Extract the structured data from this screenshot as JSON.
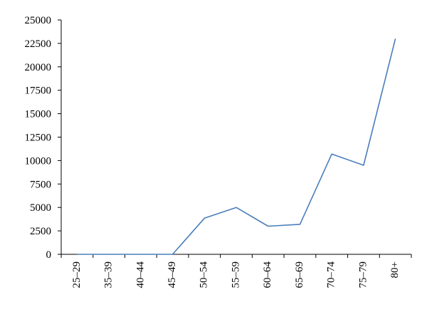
{
  "chart_data": {
    "type": "line",
    "title": "",
    "xlabel": "",
    "ylabel": "",
    "categories": [
      "25–29",
      "35–39",
      "40–44",
      "45–49",
      "50–54",
      "55–59",
      "60–64",
      "65–69",
      "70–74",
      "75–79",
      "80+"
    ],
    "series": [
      {
        "values": [
          0,
          0,
          0,
          0,
          3850,
          5000,
          3000,
          3200,
          10700,
          9500,
          23000
        ]
      }
    ],
    "ylim": [
      0,
      25000
    ],
    "yticks": [
      0,
      2500,
      5000,
      7500,
      10000,
      12500,
      15000,
      17500,
      20000,
      22500,
      25000
    ],
    "grid": false,
    "legend": "none",
    "colors": {
      "line": "#4a7ebb",
      "axis": "#000000"
    }
  }
}
